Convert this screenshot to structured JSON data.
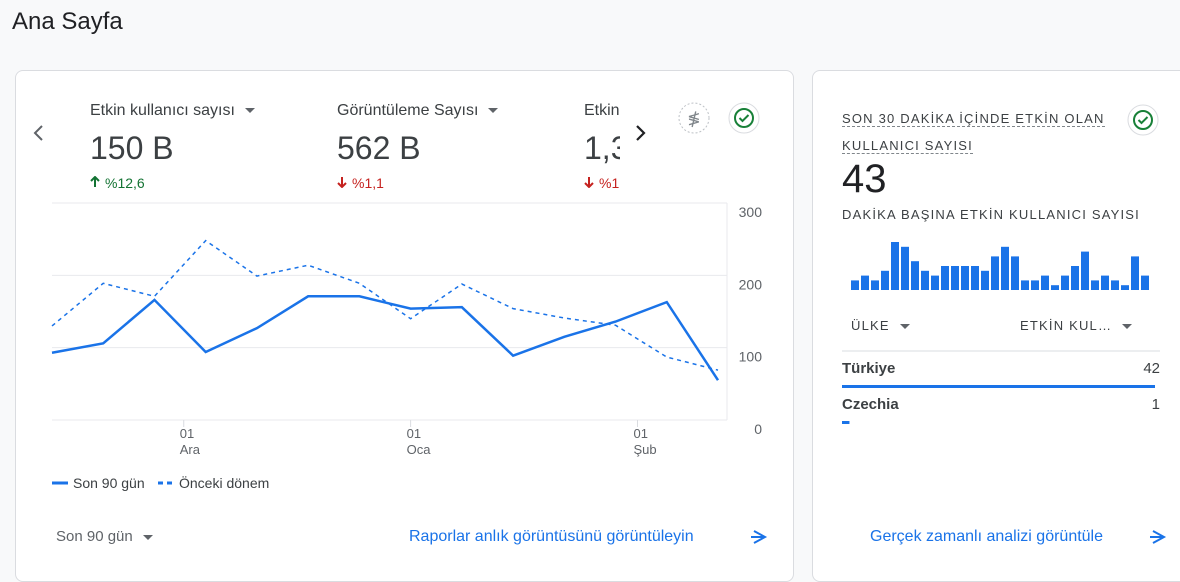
{
  "header": {
    "title": "Ana Sayfa"
  },
  "metrics": [
    {
      "label": "Etkin kullanıcı sayısı",
      "value": "150 B",
      "change": "%12,6",
      "direction": "up"
    },
    {
      "label": "Görüntüleme Sayısı",
      "value": "562 B",
      "change": "%1,1",
      "direction": "down"
    },
    {
      "label": "Etkin",
      "value": "1,3",
      "change": "%1",
      "direction": "down"
    }
  ],
  "chart_data": [
    {
      "type": "line",
      "x": [
        0,
        7,
        14,
        21,
        28,
        35,
        42,
        49,
        56,
        63,
        70,
        77,
        84,
        91
      ],
      "xlim": [
        0,
        91
      ],
      "xticks": [
        {
          "value": 18,
          "label": "01\nAra"
        },
        {
          "value": 49,
          "label": "01\nOca"
        },
        {
          "value": 80,
          "label": "01\nŞub"
        }
      ],
      "ylim": [
        0,
        300
      ],
      "yticks": [
        0,
        100,
        200,
        300
      ],
      "grid": true,
      "series": [
        {
          "name": "Son 90 gün",
          "color": "#1a73e8",
          "style": "solid",
          "values": [
            93,
            106,
            166,
            94,
            127,
            171,
            171,
            154,
            156,
            89,
            115,
            136,
            163,
            55
          ]
        },
        {
          "name": "Önceki dönem",
          "color": "#1a73e8",
          "style": "dashed",
          "values": [
            130,
            189,
            171,
            248,
            199,
            214,
            189,
            140,
            188,
            154,
            141,
            131,
            87,
            69
          ]
        }
      ]
    },
    {
      "type": "bar",
      "color": "#1a73e8",
      "ylim": [
        0,
        10
      ],
      "values": [
        2,
        3,
        2,
        4,
        10,
        9,
        6,
        4,
        3,
        5,
        5,
        5,
        5,
        4,
        7,
        9,
        7,
        2,
        2,
        3,
        1,
        3,
        5,
        8,
        2,
        3,
        2,
        1,
        7,
        3
      ]
    }
  ],
  "footer": {
    "range": "Son 90 gün",
    "link": "Raporlar anlık görüntüsünü görüntüleyin"
  },
  "realtime": {
    "title": "SON 30 DAKİKA İÇİNDE ETKİN OLAN KULLANICI SAYISI",
    "value": 43,
    "subtitle": "DAKİKA BAŞINA ETKİN KULLANICI SAYISI",
    "columns": [
      "ÜLKE",
      "ETKİN KUL…"
    ],
    "rows": [
      {
        "country": "Türkiye",
        "users": 42
      },
      {
        "country": "Czechia",
        "users": 1
      }
    ],
    "link": "Gerçek zamanlı analizi görüntüle"
  }
}
